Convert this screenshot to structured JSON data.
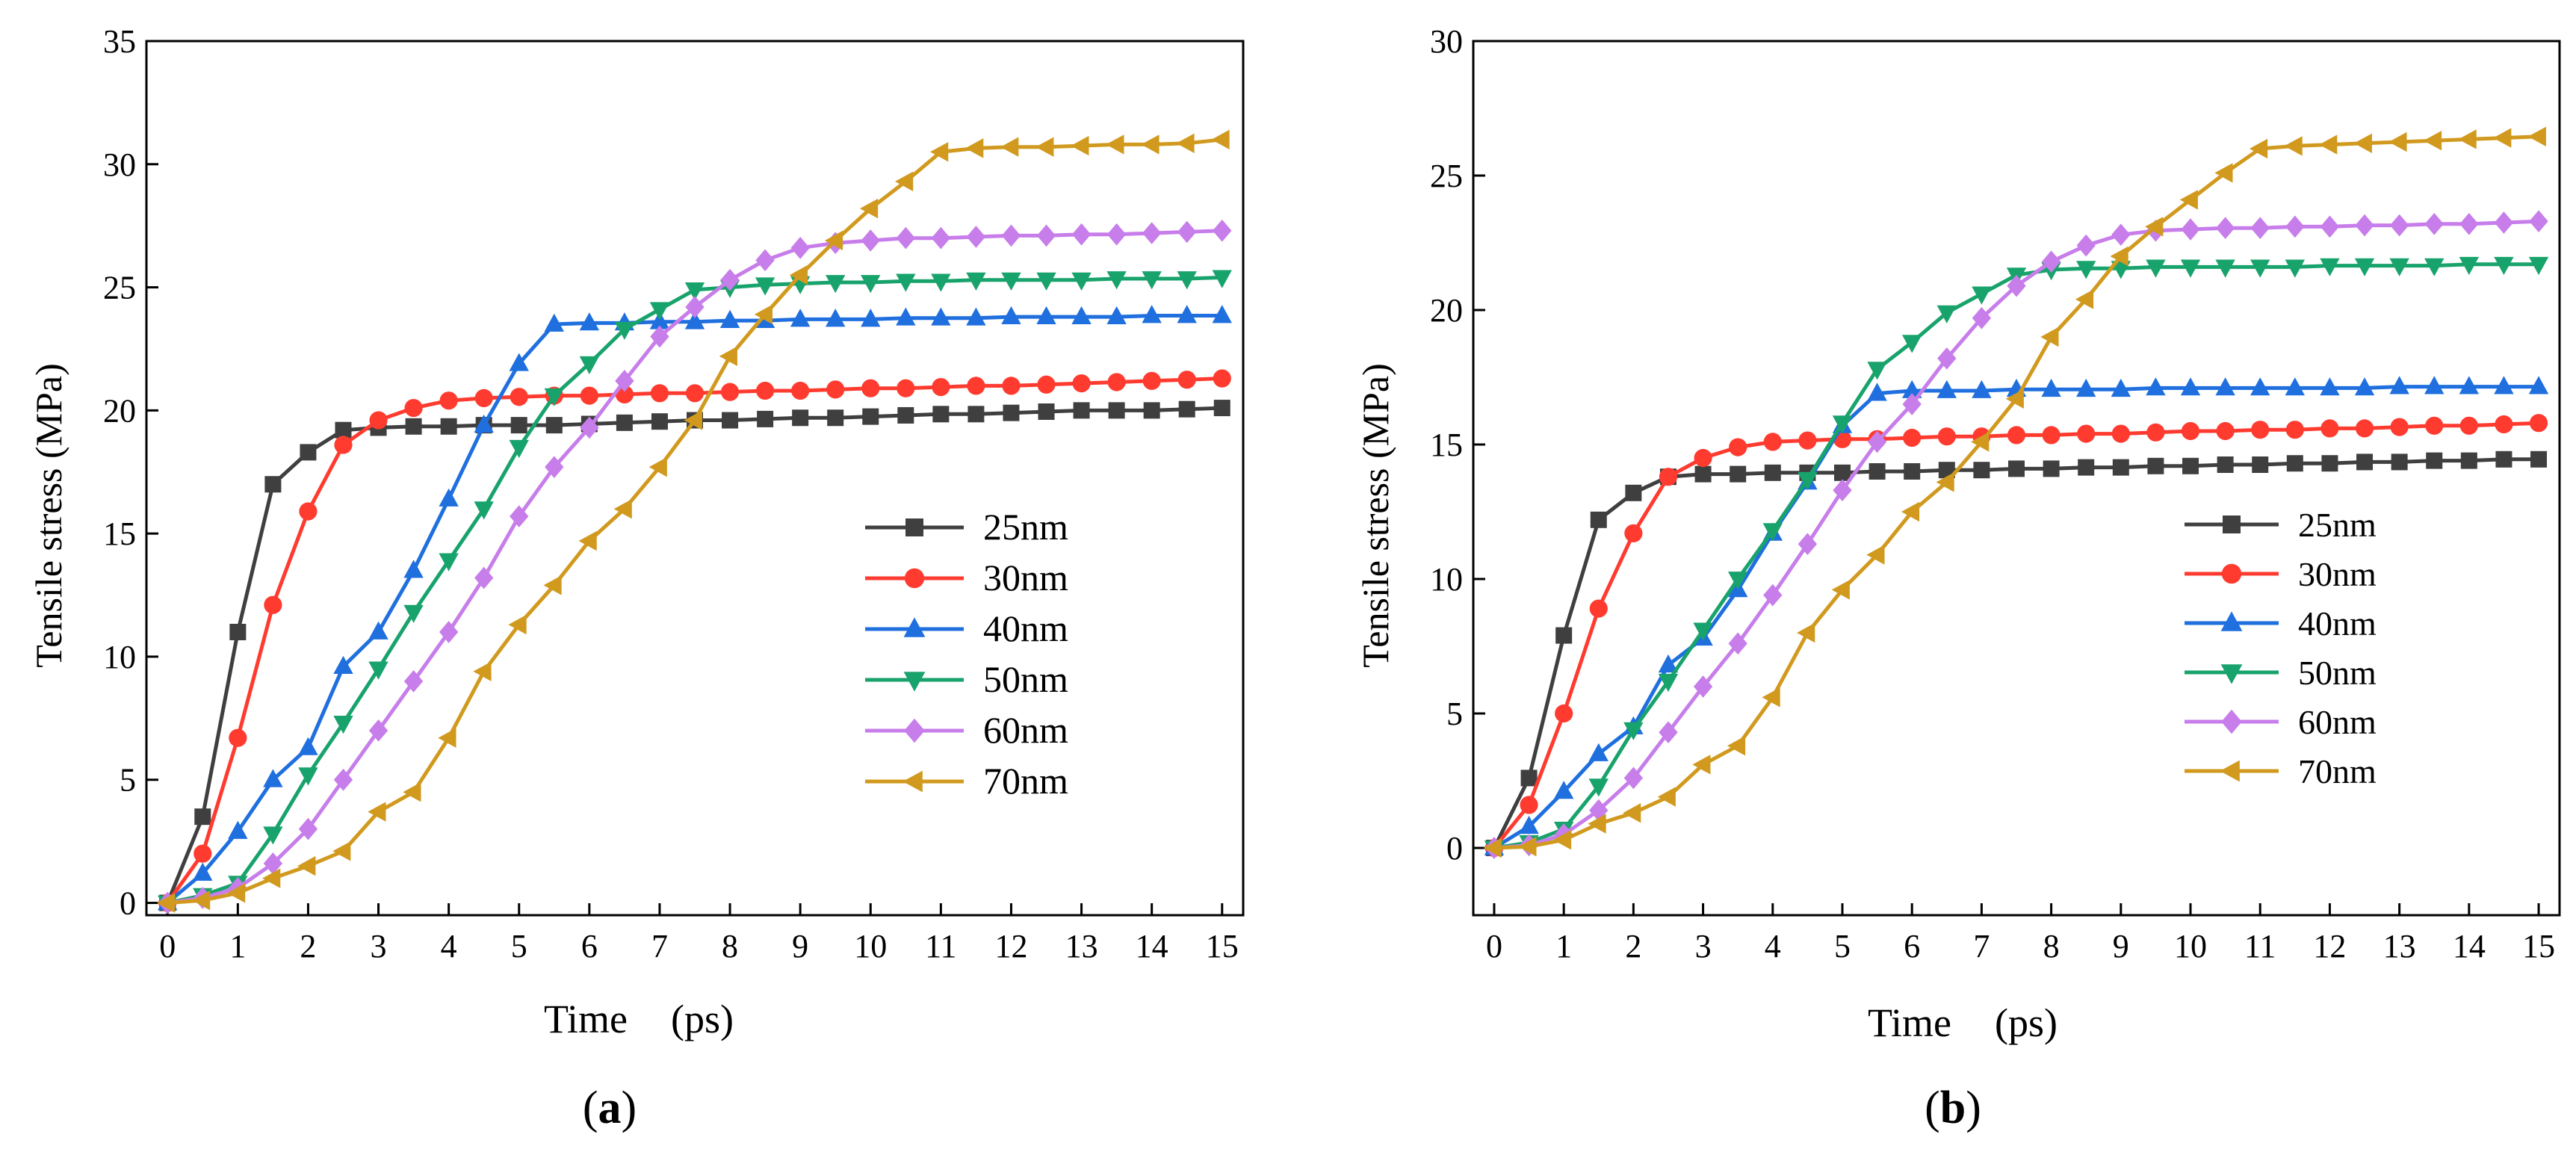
{
  "chart_data": [
    {
      "type": "line",
      "panel_label": "(a)",
      "panel_letter": "a",
      "xlabel": "Time",
      "xunit": "(ps)",
      "ylabel": "Tensile stress (MPa)",
      "xlim": [
        -0.3,
        15.3
      ],
      "ylim": [
        -0.5,
        35
      ],
      "xticks": [
        "0",
        "1",
        "2",
        "3",
        "4",
        "5",
        "6",
        "7",
        "8",
        "9",
        "10",
        "11",
        "12",
        "13",
        "14",
        "15"
      ],
      "yticks": [
        "0",
        "5",
        "10",
        "15",
        "20",
        "25",
        "30",
        "35"
      ],
      "x": [
        0,
        0.5,
        1,
        1.5,
        2,
        2.5,
        3,
        3.5,
        4,
        4.5,
        5,
        5.5,
        6,
        6.5,
        7,
        7.5,
        8,
        8.5,
        9,
        9.5,
        10,
        10.5,
        11,
        11.5,
        12,
        12.5,
        13,
        13.5,
        14,
        14.5,
        15
      ],
      "series": [
        {
          "name": "25nm",
          "color": "#3f3f3f",
          "marker": "square",
          "values": [
            0,
            3.5,
            11.0,
            17.0,
            18.3,
            19.2,
            19.3,
            19.35,
            19.35,
            19.4,
            19.4,
            19.4,
            19.45,
            19.5,
            19.55,
            19.6,
            19.6,
            19.65,
            19.7,
            19.7,
            19.75,
            19.8,
            19.85,
            19.85,
            19.9,
            19.95,
            20.0,
            20.0,
            20.0,
            20.05,
            20.1
          ]
        },
        {
          "name": "30nm",
          "color": "#ff3b30",
          "marker": "circle",
          "values": [
            0,
            2.0,
            6.7,
            12.1,
            15.9,
            18.6,
            19.6,
            20.1,
            20.4,
            20.5,
            20.55,
            20.6,
            20.6,
            20.65,
            20.7,
            20.7,
            20.75,
            20.8,
            20.8,
            20.85,
            20.9,
            20.9,
            20.95,
            21.0,
            21.0,
            21.05,
            21.1,
            21.15,
            21.2,
            21.25,
            21.3
          ]
        },
        {
          "name": "40nm",
          "color": "#1f6fdf",
          "marker": "triangle-up",
          "values": [
            0,
            1.2,
            2.9,
            5.0,
            6.3,
            9.6,
            11.0,
            13.5,
            16.4,
            19.4,
            21.9,
            23.5,
            23.55,
            23.55,
            23.6,
            23.6,
            23.65,
            23.65,
            23.7,
            23.7,
            23.7,
            23.75,
            23.75,
            23.75,
            23.8,
            23.8,
            23.8,
            23.8,
            23.85,
            23.85,
            23.85
          ]
        },
        {
          "name": "50nm",
          "color": "#19a36c",
          "marker": "triangle-down",
          "values": [
            0,
            0.3,
            0.8,
            2.8,
            5.2,
            7.3,
            9.5,
            11.8,
            13.9,
            16.0,
            18.5,
            20.6,
            21.9,
            23.3,
            24.1,
            24.9,
            25.0,
            25.1,
            25.15,
            25.2,
            25.2,
            25.25,
            25.25,
            25.3,
            25.3,
            25.3,
            25.3,
            25.35,
            25.35,
            25.35,
            25.4
          ]
        },
        {
          "name": "60nm",
          "color": "#c77dea",
          "marker": "diamond",
          "values": [
            0,
            0.2,
            0.6,
            1.6,
            3.0,
            5.0,
            7.0,
            9.0,
            11.0,
            13.2,
            15.7,
            17.7,
            19.3,
            21.2,
            23.0,
            24.2,
            25.3,
            26.1,
            26.6,
            26.8,
            26.9,
            27.0,
            27.0,
            27.05,
            27.1,
            27.1,
            27.15,
            27.15,
            27.2,
            27.25,
            27.3
          ]
        },
        {
          "name": "70nm",
          "color": "#d19a1e",
          "marker": "triangle-left",
          "values": [
            0,
            0.1,
            0.4,
            1.0,
            1.5,
            2.1,
            3.7,
            4.5,
            6.7,
            9.4,
            11.3,
            12.9,
            14.7,
            16.0,
            17.7,
            19.6,
            22.2,
            23.9,
            25.5,
            26.9,
            28.2,
            29.3,
            30.5,
            30.65,
            30.7,
            30.7,
            30.75,
            30.8,
            30.8,
            30.85,
            31.0
          ]
        }
      ]
    },
    {
      "type": "line",
      "panel_label": "(b)",
      "panel_letter": "b",
      "xlabel": "Time",
      "xunit": "(ps)",
      "ylabel": "Tensile stress (MPa)",
      "xlim": [
        -0.3,
        15.3
      ],
      "ylim": [
        -2.5,
        30
      ],
      "xticks": [
        "0",
        "1",
        "2",
        "3",
        "4",
        "5",
        "6",
        "7",
        "8",
        "9",
        "10",
        "11",
        "12",
        "13",
        "14",
        "15"
      ],
      "yticks": [
        "0",
        "5",
        "10",
        "15",
        "20",
        "25",
        "30"
      ],
      "x": [
        0,
        0.5,
        1,
        1.5,
        2,
        2.5,
        3,
        3.5,
        4,
        4.5,
        5,
        5.5,
        6,
        6.5,
        7,
        7.5,
        8,
        8.5,
        9,
        9.5,
        10,
        10.5,
        11,
        11.5,
        12,
        12.5,
        13,
        13.5,
        14,
        14.5,
        15
      ],
      "series": [
        {
          "name": "25nm",
          "color": "#3f3f3f",
          "marker": "square",
          "values": [
            0,
            2.6,
            7.9,
            12.2,
            13.2,
            13.8,
            13.9,
            13.9,
            13.95,
            13.95,
            13.95,
            14.0,
            14.0,
            14.05,
            14.05,
            14.1,
            14.1,
            14.15,
            14.15,
            14.2,
            14.2,
            14.25,
            14.25,
            14.3,
            14.3,
            14.35,
            14.35,
            14.4,
            14.4,
            14.45,
            14.45
          ]
        },
        {
          "name": "30nm",
          "color": "#ff3b30",
          "marker": "circle",
          "values": [
            0,
            1.6,
            5.0,
            8.9,
            11.7,
            13.8,
            14.5,
            14.9,
            15.1,
            15.15,
            15.2,
            15.2,
            15.25,
            15.3,
            15.3,
            15.35,
            15.35,
            15.4,
            15.4,
            15.45,
            15.5,
            15.5,
            15.55,
            15.55,
            15.6,
            15.6,
            15.65,
            15.7,
            15.7,
            15.75,
            15.8
          ]
        },
        {
          "name": "40nm",
          "color": "#1f6fdf",
          "marker": "triangle-up",
          "values": [
            0,
            0.8,
            2.1,
            3.5,
            4.5,
            6.8,
            7.8,
            9.6,
            11.7,
            13.6,
            15.7,
            16.9,
            17.0,
            17.0,
            17.0,
            17.05,
            17.05,
            17.05,
            17.05,
            17.1,
            17.1,
            17.1,
            17.1,
            17.1,
            17.1,
            17.1,
            17.15,
            17.15,
            17.15,
            17.15,
            17.15
          ]
        },
        {
          "name": "50nm",
          "color": "#19a36c",
          "marker": "triangle-down",
          "values": [
            0,
            0.2,
            0.7,
            2.3,
            4.4,
            6.2,
            8.1,
            10.0,
            11.8,
            13.7,
            15.8,
            17.8,
            18.8,
            19.9,
            20.6,
            21.3,
            21.5,
            21.55,
            21.55,
            21.6,
            21.6,
            21.6,
            21.6,
            21.6,
            21.65,
            21.65,
            21.65,
            21.65,
            21.7,
            21.7,
            21.7
          ]
        },
        {
          "name": "60nm",
          "color": "#c77dea",
          "marker": "diamond",
          "values": [
            0,
            0.1,
            0.5,
            1.4,
            2.6,
            4.3,
            6.0,
            7.6,
            9.4,
            11.3,
            13.3,
            15.1,
            16.5,
            18.2,
            19.7,
            20.9,
            21.8,
            22.4,
            22.8,
            22.95,
            23.0,
            23.05,
            23.05,
            23.1,
            23.1,
            23.15,
            23.15,
            23.2,
            23.2,
            23.25,
            23.3
          ]
        },
        {
          "name": "70nm",
          "color": "#d19a1e",
          "marker": "triangle-left",
          "values": [
            0,
            0.05,
            0.3,
            0.9,
            1.3,
            1.9,
            3.1,
            3.8,
            5.6,
            8.0,
            9.6,
            10.9,
            12.5,
            13.6,
            15.1,
            16.7,
            19.0,
            20.4,
            22.0,
            23.1,
            24.1,
            25.1,
            26.0,
            26.1,
            26.15,
            26.2,
            26.25,
            26.3,
            26.35,
            26.4,
            26.45
          ]
        }
      ]
    }
  ]
}
